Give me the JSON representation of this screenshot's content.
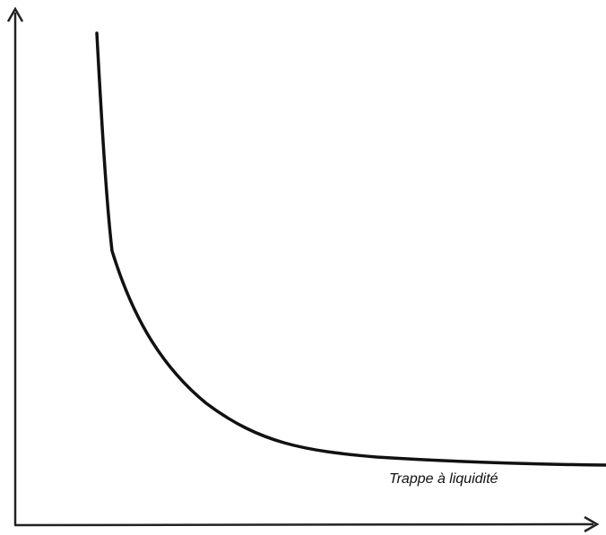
{
  "label": "Trappe à liquidité"
}
